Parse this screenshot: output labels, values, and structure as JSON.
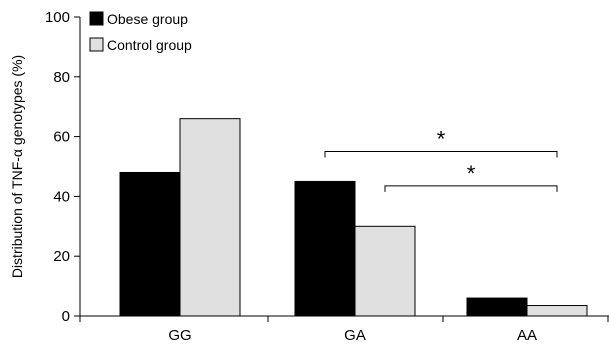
{
  "chart_data": {
    "type": "bar",
    "categories": [
      "GG",
      "GA",
      "AA"
    ],
    "series": [
      {
        "name": "Obese group",
        "values": [
          48,
          45,
          6
        ],
        "color": "#000000"
      },
      {
        "name": "Control group",
        "values": [
          66,
          30,
          3.5
        ],
        "color": "#e0e0e0"
      }
    ],
    "title": "",
    "xlabel": "",
    "ylabel": "Distribution of TNF-α genotypes (%)",
    "ylim": [
      0,
      100
    ],
    "yticks": [
      0,
      20,
      40,
      60,
      80,
      100
    ],
    "legend_position": "top-left",
    "grid": false,
    "annotations": [
      {
        "label": "*",
        "from_category": "GA",
        "to_category": "AA",
        "from_series": "Obese group",
        "to_series": "Control group",
        "level": 55
      },
      {
        "label": "*",
        "from_category": "GA",
        "to_category": "AA",
        "from_series": "Control group",
        "to_series": "Control group",
        "level": 43.5
      }
    ]
  }
}
